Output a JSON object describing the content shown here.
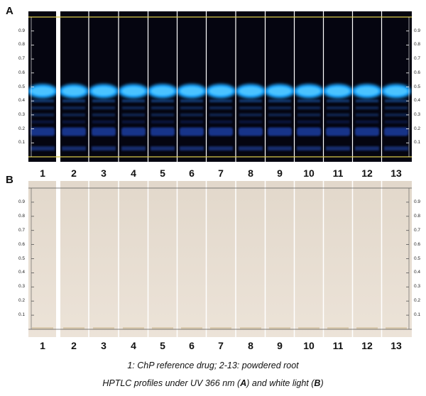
{
  "panels": {
    "a_label": "A",
    "b_label": "B"
  },
  "lanes": [
    "1",
    "2",
    "3",
    "4",
    "5",
    "6",
    "7",
    "8",
    "9",
    "10",
    "11",
    "12",
    "13"
  ],
  "rf_scale": [
    "0.9",
    "0.8",
    "0.7",
    "0.6",
    "0.5",
    "0.4",
    "0.3",
    "0.2",
    "0.1"
  ],
  "caption": {
    "line1": "1: ChP reference drug; 2-13: powdered root",
    "line2_prefix": "HPTLC profiles under UV 366 nm (",
    "line2_a": "A",
    "line2_mid": ") and white light (",
    "line2_b": "B",
    "line2_suffix": ")"
  },
  "colors": {
    "uv_background": "#050510",
    "main_band": "#1fa6ff",
    "minor_band": "#1c3fa8",
    "white_plate": "#e7dccf",
    "solvent_front_a": "#d9c94a",
    "lane_separator": "#ffffff"
  }
}
